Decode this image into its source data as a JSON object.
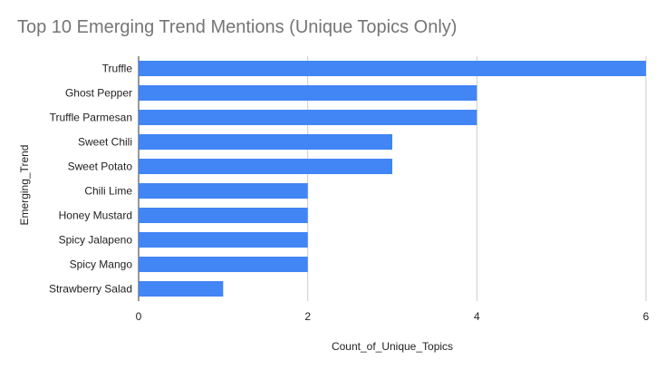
{
  "chart_data": {
    "type": "bar",
    "orientation": "horizontal",
    "title": "Top 10 Emerging Trend Mentions (Unique Topics Only)",
    "xlabel": "Count_of_Unique_Topics",
    "ylabel": "Emerging_Trend",
    "categories": [
      "Truffle",
      "Ghost Pepper",
      "Truffle Parmesan",
      "Sweet Chili",
      "Sweet Potato",
      "Chili Lime",
      "Honey Mustard",
      "Spicy Jalapeno",
      "Spicy Mango",
      "Strawberry Salad"
    ],
    "values": [
      6,
      4,
      4,
      3,
      3,
      2,
      2,
      2,
      2,
      1
    ],
    "xlim": [
      0,
      6
    ],
    "xticks": [
      "0",
      "2",
      "4",
      "6"
    ],
    "grid": true,
    "legend": "none",
    "colors": {
      "bar": "#4285f4",
      "grid": "#cccccc",
      "title": "#757575",
      "text": "#222222"
    }
  }
}
